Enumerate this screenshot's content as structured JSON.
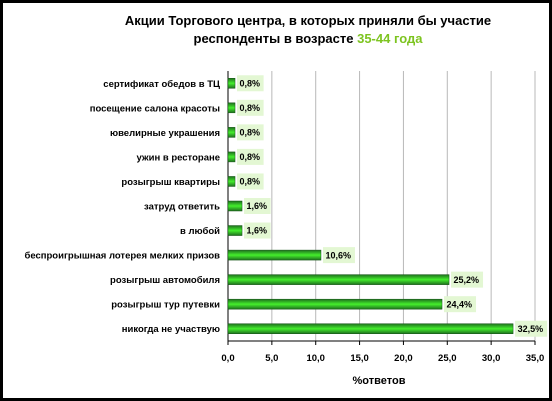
{
  "chart_data": {
    "type": "bar",
    "orientation": "horizontal",
    "title_line1": "Акции Торгового центра, в которых приняли бы участие",
    "title_line2_prefix": "респонденты в возрасте ",
    "title_line2_highlight": "35-44 года",
    "xlabel": "%ответов",
    "xlim": [
      0,
      35
    ],
    "xticks": [
      "0,0",
      "5,0",
      "10,0",
      "15,0",
      "20,0",
      "25,0",
      "30,0",
      "35,0"
    ],
    "grid": "vertical",
    "categories": [
      "сертификат обедов в ТЦ",
      "посещение салона красоты",
      "ювелирные украшения",
      "ужин в ресторане",
      "розыгрыш квартиры",
      "затруд ответить",
      "в любой",
      "беспроигрышная лотерея мелких призов",
      "розыгрыш автомобиля",
      "розыгрыш тур путевки",
      "никогда не участвую"
    ],
    "values": [
      0.8,
      0.8,
      0.8,
      0.8,
      0.8,
      1.6,
      1.6,
      10.6,
      25.2,
      24.4,
      32.5
    ],
    "data_labels": [
      "0,8%",
      "0,8%",
      "0,8%",
      "0,8%",
      "0,8%",
      "1,6%",
      "1,6%",
      "10,6%",
      "25,2%",
      "24,4%",
      "32,5%"
    ],
    "colors": {
      "bar_dark": "#1e6f1e",
      "bar_light": "#44ee2c",
      "label_bg": "#e3f7d3",
      "title_highlight": "#7dc420",
      "frame": "#000000"
    }
  }
}
